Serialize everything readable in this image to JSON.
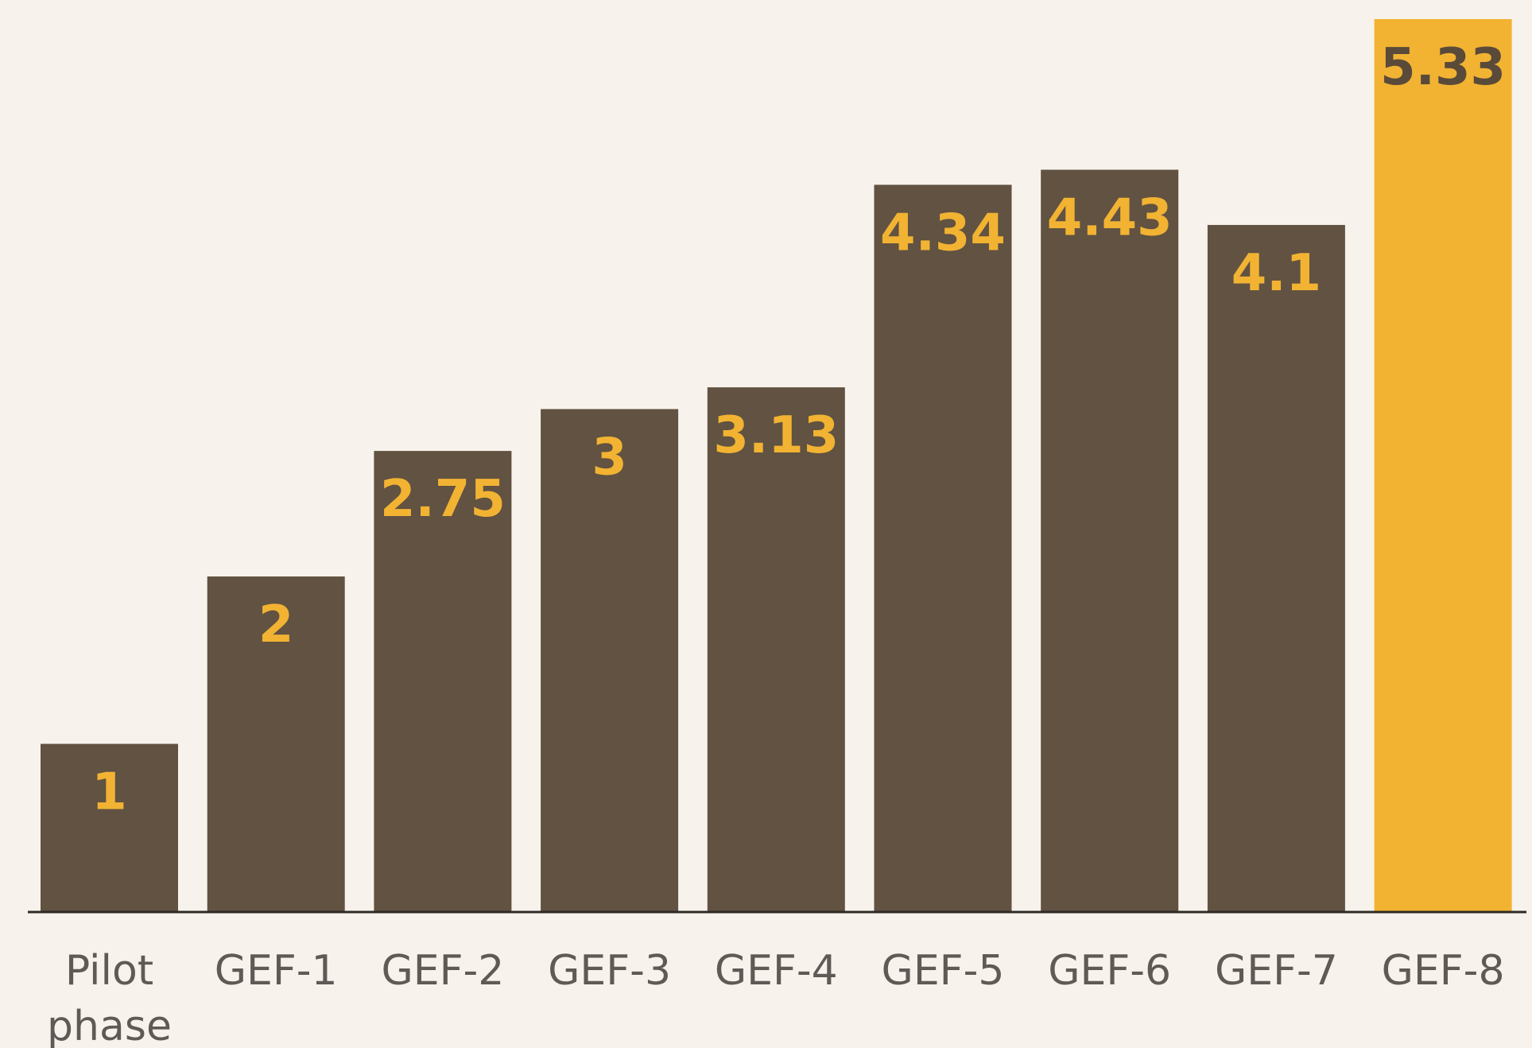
{
  "chart_data": {
    "type": "bar",
    "categories": [
      "Pilot phase",
      "GEF-1",
      "GEF-2",
      "GEF-3",
      "GEF-4",
      "GEF-5",
      "GEF-6",
      "GEF-7",
      "GEF-8"
    ],
    "values": [
      1,
      2,
      2.75,
      3,
      3.13,
      4.34,
      4.43,
      4.1,
      5.33
    ],
    "value_labels": [
      "1",
      "2",
      "2.75",
      "3",
      "3.13",
      "4.34",
      "4.43",
      "4.1",
      "5.33"
    ],
    "ylim": [
      0,
      5.33
    ],
    "grid": false,
    "colors": {
      "bar": "#615241",
      "highlight_bar": "#f2b333",
      "label_on_bar": "#f2b333",
      "label_on_highlight": "#5a4a3a",
      "baseline": "#2e2a26",
      "tick_text": "#5f5a56",
      "background": "#f7f3ec"
    },
    "highlight_index": 8
  }
}
